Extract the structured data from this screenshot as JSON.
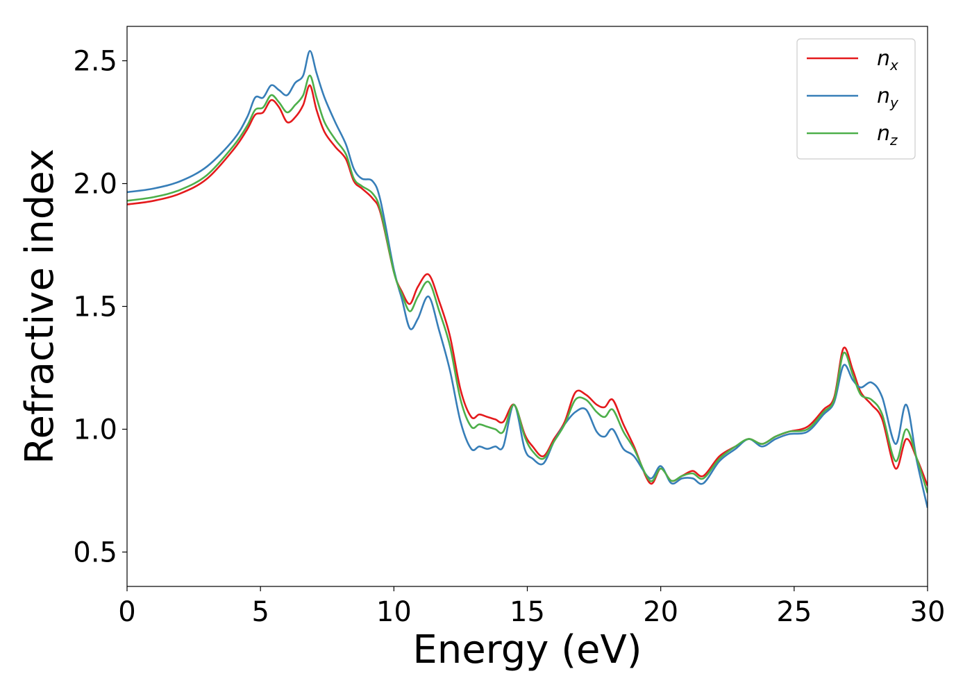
{
  "chart_data": {
    "type": "line",
    "title": "",
    "xlabel": "Energy (eV)",
    "ylabel": "Refractive index",
    "xlim": [
      0,
      30
    ],
    "ylim": [
      0.36,
      2.64
    ],
    "xticks": [
      0,
      5,
      10,
      15,
      20,
      25,
      30
    ],
    "xtick_labels": [
      "0",
      "5",
      "10",
      "15",
      "20",
      "25",
      "30"
    ],
    "yticks": [
      0.5,
      1.0,
      1.5,
      2.0,
      2.5
    ],
    "ytick_labels": [
      "0.5",
      "1.0",
      "1.5",
      "2.0",
      "2.5"
    ],
    "grid": false,
    "legend_position": "top-right",
    "x": [
      0,
      1,
      2,
      3,
      4,
      4.5,
      4.8,
      5.1,
      5.4,
      5.7,
      6.0,
      6.3,
      6.6,
      6.85,
      7.1,
      7.4,
      7.8,
      8.2,
      8.5,
      8.8,
      9.2,
      9.5,
      10.0,
      10.3,
      10.6,
      10.9,
      11.3,
      11.7,
      12.1,
      12.5,
      12.9,
      13.2,
      13.5,
      13.8,
      14.1,
      14.5,
      14.9,
      15.2,
      15.6,
      16.0,
      16.4,
      16.8,
      17.2,
      17.6,
      17.9,
      18.2,
      18.6,
      19.0,
      19.6,
      20.0,
      20.4,
      20.8,
      21.2,
      21.6,
      22.2,
      22.8,
      23.3,
      23.8,
      24.3,
      24.8,
      25.5,
      26.1,
      26.5,
      26.85,
      27.2,
      27.5,
      27.9,
      28.3,
      28.8,
      29.2,
      29.6,
      30.0
    ],
    "series": [
      {
        "name": "n_x",
        "label_main": "n",
        "label_sub": "x",
        "color": "#e41a1c",
        "values": [
          1.915,
          1.93,
          1.96,
          2.02,
          2.14,
          2.22,
          2.28,
          2.29,
          2.34,
          2.31,
          2.25,
          2.27,
          2.32,
          2.4,
          2.3,
          2.21,
          2.15,
          2.1,
          2.01,
          1.98,
          1.94,
          1.88,
          1.64,
          1.56,
          1.51,
          1.58,
          1.63,
          1.52,
          1.38,
          1.16,
          1.05,
          1.06,
          1.05,
          1.04,
          1.03,
          1.1,
          0.98,
          0.93,
          0.89,
          0.96,
          1.03,
          1.15,
          1.14,
          1.1,
          1.09,
          1.12,
          1.02,
          0.93,
          0.78,
          0.84,
          0.79,
          0.81,
          0.83,
          0.81,
          0.89,
          0.93,
          0.96,
          0.94,
          0.97,
          0.99,
          1.01,
          1.08,
          1.13,
          1.33,
          1.24,
          1.15,
          1.1,
          1.04,
          0.84,
          0.96,
          0.88,
          0.77
        ]
      },
      {
        "name": "n_y",
        "label_main": "n",
        "label_sub": "y",
        "color": "#377eb8",
        "values": [
          1.965,
          1.98,
          2.01,
          2.07,
          2.18,
          2.27,
          2.35,
          2.35,
          2.4,
          2.38,
          2.36,
          2.41,
          2.44,
          2.54,
          2.45,
          2.35,
          2.25,
          2.16,
          2.06,
          2.02,
          2.01,
          1.93,
          1.65,
          1.53,
          1.41,
          1.45,
          1.54,
          1.4,
          1.24,
          1.03,
          0.92,
          0.93,
          0.92,
          0.93,
          0.93,
          1.1,
          0.92,
          0.88,
          0.86,
          0.95,
          1.02,
          1.07,
          1.08,
          0.99,
          0.97,
          1.0,
          0.92,
          0.89,
          0.8,
          0.85,
          0.78,
          0.8,
          0.8,
          0.78,
          0.87,
          0.92,
          0.96,
          0.93,
          0.96,
          0.98,
          0.99,
          1.06,
          1.11,
          1.26,
          1.2,
          1.17,
          1.19,
          1.13,
          0.94,
          1.1,
          0.87,
          0.68
        ]
      },
      {
        "name": "n_z",
        "label_main": "n",
        "label_sub": "z",
        "color": "#4daf4a",
        "values": [
          1.93,
          1.945,
          1.975,
          2.035,
          2.155,
          2.235,
          2.3,
          2.31,
          2.36,
          2.33,
          2.29,
          2.32,
          2.36,
          2.44,
          2.35,
          2.25,
          2.18,
          2.12,
          2.02,
          1.99,
          1.96,
          1.89,
          1.64,
          1.55,
          1.48,
          1.54,
          1.6,
          1.48,
          1.34,
          1.12,
          1.01,
          1.02,
          1.01,
          1.0,
          0.99,
          1.1,
          0.97,
          0.91,
          0.88,
          0.95,
          1.02,
          1.12,
          1.12,
          1.07,
          1.05,
          1.08,
          0.99,
          0.92,
          0.79,
          0.84,
          0.79,
          0.81,
          0.82,
          0.8,
          0.88,
          0.93,
          0.96,
          0.94,
          0.97,
          0.99,
          1.0,
          1.07,
          1.12,
          1.31,
          1.22,
          1.14,
          1.12,
          1.06,
          0.87,
          1.0,
          0.88,
          0.74
        ]
      }
    ]
  }
}
